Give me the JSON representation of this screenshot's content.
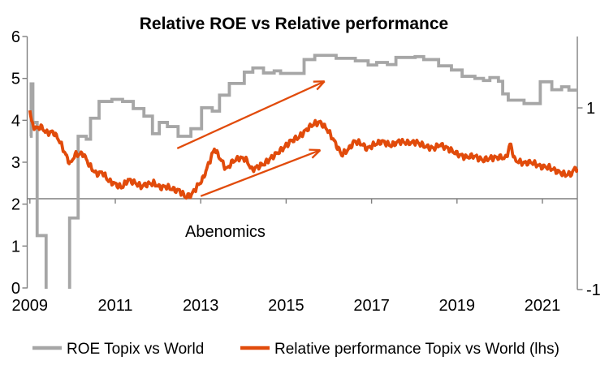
{
  "chart_data": {
    "type": "line",
    "title": "Relative ROE vs Relative performance",
    "axis_color": "#7F7F7F",
    "text_color": "#000000",
    "x_axis": {
      "min": 2009,
      "max": 2021.85,
      "tick_years": [
        2009,
        2011,
        2013,
        2015,
        2017,
        2019,
        2021
      ],
      "labels": [
        "2009",
        "2011",
        "2013",
        "2015",
        "2017",
        "2019",
        "2021"
      ]
    },
    "left_axis": {
      "min": 0,
      "max": 6,
      "ticks": [
        0,
        1,
        2,
        3,
        4,
        5,
        6
      ]
    },
    "right_axis": {
      "min": -1,
      "max": 1,
      "ticks": [
        1,
        -1
      ],
      "axis_cross_value": 0
    },
    "annotations": [
      {
        "text": "Abenomics",
        "x": 2012.65,
        "y": 1.22
      }
    ],
    "arrows": [
      {
        "x1": 2012.45,
        "y1": 3.33,
        "x2": 2015.9,
        "y2": 4.93
      },
      {
        "x1": 2013.0,
        "y1": 2.19,
        "x2": 2015.8,
        "y2": 3.29
      }
    ],
    "series": [
      {
        "name": "ROE Topix vs World",
        "color": "#A6A6A6",
        "axis": "left",
        "line_style": "step",
        "points": [
          [
            2009.0,
            3.62
          ],
          [
            2009.03,
            4.87
          ],
          [
            2009.07,
            3.95
          ],
          [
            2009.17,
            1.25
          ],
          [
            2009.38,
            -0.5
          ],
          [
            2009.93,
            1.67
          ],
          [
            2010.13,
            3.62
          ],
          [
            2010.32,
            3.55
          ],
          [
            2010.42,
            4.05
          ],
          [
            2010.62,
            4.45
          ],
          [
            2010.92,
            4.5
          ],
          [
            2011.17,
            4.45
          ],
          [
            2011.42,
            4.28
          ],
          [
            2011.67,
            4.1
          ],
          [
            2011.87,
            3.68
          ],
          [
            2012.03,
            3.95
          ],
          [
            2012.22,
            3.85
          ],
          [
            2012.47,
            3.62
          ],
          [
            2012.77,
            3.8
          ],
          [
            2013.02,
            4.3
          ],
          [
            2013.27,
            4.22
          ],
          [
            2013.44,
            4.6
          ],
          [
            2013.67,
            4.88
          ],
          [
            2014.02,
            5.15
          ],
          [
            2014.22,
            5.25
          ],
          [
            2014.47,
            5.13
          ],
          [
            2014.72,
            5.18
          ],
          [
            2014.87,
            5.12
          ],
          [
            2015.42,
            5.45
          ],
          [
            2015.67,
            5.55
          ],
          [
            2016.17,
            5.48
          ],
          [
            2016.62,
            5.42
          ],
          [
            2016.92,
            5.32
          ],
          [
            2017.12,
            5.38
          ],
          [
            2017.37,
            5.33
          ],
          [
            2017.57,
            5.5
          ],
          [
            2018.02,
            5.52
          ],
          [
            2018.22,
            5.45
          ],
          [
            2018.57,
            5.3
          ],
          [
            2018.87,
            5.2
          ],
          [
            2019.12,
            5.05
          ],
          [
            2019.42,
            5.0
          ],
          [
            2019.62,
            4.95
          ],
          [
            2019.77,
            5.02
          ],
          [
            2019.97,
            4.93
          ],
          [
            2020.07,
            4.63
          ],
          [
            2020.2,
            4.48
          ],
          [
            2020.57,
            4.4
          ],
          [
            2020.95,
            4.92
          ],
          [
            2021.22,
            4.73
          ],
          [
            2021.45,
            4.8
          ],
          [
            2021.62,
            4.72
          ]
        ]
      },
      {
        "name": "Relative performance Topix vs World (lhs)",
        "color": "#E14B0B",
        "axis": "left",
        "line_style": "noisy",
        "points": [
          [
            2009.0,
            4.25
          ],
          [
            2009.05,
            3.9
          ],
          [
            2009.15,
            3.8
          ],
          [
            2009.25,
            3.85
          ],
          [
            2009.4,
            3.7
          ],
          [
            2009.55,
            3.72
          ],
          [
            2009.7,
            3.5
          ],
          [
            2009.85,
            3.15
          ],
          [
            2009.95,
            2.95
          ],
          [
            2010.05,
            3.18
          ],
          [
            2010.25,
            3.2
          ],
          [
            2010.4,
            2.92
          ],
          [
            2010.55,
            2.72
          ],
          [
            2010.7,
            2.76
          ],
          [
            2010.85,
            2.55
          ],
          [
            2011.0,
            2.48
          ],
          [
            2011.15,
            2.4
          ],
          [
            2011.3,
            2.58
          ],
          [
            2011.45,
            2.52
          ],
          [
            2011.6,
            2.42
          ],
          [
            2011.75,
            2.48
          ],
          [
            2011.9,
            2.5
          ],
          [
            2012.05,
            2.4
          ],
          [
            2012.2,
            2.42
          ],
          [
            2012.35,
            2.35
          ],
          [
            2012.5,
            2.32
          ],
          [
            2012.65,
            2.17
          ],
          [
            2012.78,
            2.22
          ],
          [
            2012.9,
            2.4
          ],
          [
            2013.05,
            2.6
          ],
          [
            2013.2,
            3.0
          ],
          [
            2013.32,
            3.32
          ],
          [
            2013.45,
            3.1
          ],
          [
            2013.6,
            2.83
          ],
          [
            2013.75,
            3.02
          ],
          [
            2013.9,
            3.1
          ],
          [
            2014.05,
            3.08
          ],
          [
            2014.2,
            2.82
          ],
          [
            2014.35,
            2.9
          ],
          [
            2014.5,
            2.97
          ],
          [
            2014.7,
            3.15
          ],
          [
            2014.9,
            3.3
          ],
          [
            2015.1,
            3.5
          ],
          [
            2015.3,
            3.6
          ],
          [
            2015.5,
            3.8
          ],
          [
            2015.65,
            3.92
          ],
          [
            2015.8,
            3.95
          ],
          [
            2015.95,
            3.8
          ],
          [
            2016.1,
            3.55
          ],
          [
            2016.3,
            3.18
          ],
          [
            2016.45,
            3.3
          ],
          [
            2016.6,
            3.5
          ],
          [
            2016.75,
            3.45
          ],
          [
            2016.9,
            3.32
          ],
          [
            2017.05,
            3.42
          ],
          [
            2017.25,
            3.5
          ],
          [
            2017.45,
            3.4
          ],
          [
            2017.65,
            3.5
          ],
          [
            2017.85,
            3.46
          ],
          [
            2018.05,
            3.48
          ],
          [
            2018.25,
            3.38
          ],
          [
            2018.45,
            3.33
          ],
          [
            2018.6,
            3.42
          ],
          [
            2018.8,
            3.32
          ],
          [
            2019.0,
            3.2
          ],
          [
            2019.2,
            3.12
          ],
          [
            2019.4,
            3.15
          ],
          [
            2019.6,
            3.05
          ],
          [
            2019.8,
            3.1
          ],
          [
            2020.0,
            3.12
          ],
          [
            2020.15,
            3.1
          ],
          [
            2020.25,
            3.45
          ],
          [
            2020.35,
            3.05
          ],
          [
            2020.55,
            2.98
          ],
          [
            2020.75,
            3.0
          ],
          [
            2020.95,
            2.9
          ],
          [
            2021.15,
            2.88
          ],
          [
            2021.35,
            2.78
          ],
          [
            2021.55,
            2.7
          ],
          [
            2021.7,
            2.74
          ],
          [
            2021.78,
            2.9
          ],
          [
            2021.85,
            2.7
          ]
        ]
      }
    ]
  }
}
